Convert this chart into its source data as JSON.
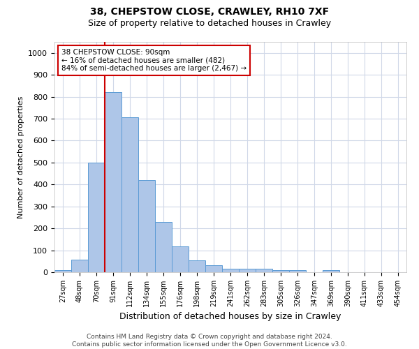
{
  "title1": "38, CHEPSTOW CLOSE, CRAWLEY, RH10 7XF",
  "title2": "Size of property relative to detached houses in Crawley",
  "xlabel": "Distribution of detached houses by size in Crawley",
  "ylabel": "Number of detached properties",
  "bin_labels": [
    "27sqm",
    "48sqm",
    "70sqm",
    "91sqm",
    "112sqm",
    "134sqm",
    "155sqm",
    "176sqm",
    "198sqm",
    "219sqm",
    "241sqm",
    "262sqm",
    "283sqm",
    "305sqm",
    "326sqm",
    "347sqm",
    "369sqm",
    "390sqm",
    "411sqm",
    "433sqm",
    "454sqm"
  ],
  "bar_heights": [
    8,
    57,
    500,
    820,
    705,
    420,
    228,
    118,
    55,
    33,
    17,
    15,
    15,
    8,
    8,
    0,
    10,
    0,
    0,
    0,
    0
  ],
  "bar_color": "#aec6e8",
  "bar_edge_color": "#5b9bd5",
  "grid_color": "#d0d8e8",
  "vline_color": "#cc0000",
  "annotation_text": "38 CHEPSTOW CLOSE: 90sqm\n← 16% of detached houses are smaller (482)\n84% of semi-detached houses are larger (2,467) →",
  "annotation_box_color": "#cc0000",
  "ylim": [
    0,
    1050
  ],
  "yticks": [
    0,
    100,
    200,
    300,
    400,
    500,
    600,
    700,
    800,
    900,
    1000
  ],
  "footer1": "Contains HM Land Registry data © Crown copyright and database right 2024.",
  "footer2": "Contains public sector information licensed under the Open Government Licence v3.0.",
  "background_color": "#ffffff",
  "title1_fontsize": 10,
  "title2_fontsize": 9,
  "ylabel_fontsize": 8,
  "xlabel_fontsize": 9,
  "tick_fontsize": 7,
  "ytick_fontsize": 8,
  "footer_fontsize": 6.5,
  "annotation_fontsize": 7.5
}
